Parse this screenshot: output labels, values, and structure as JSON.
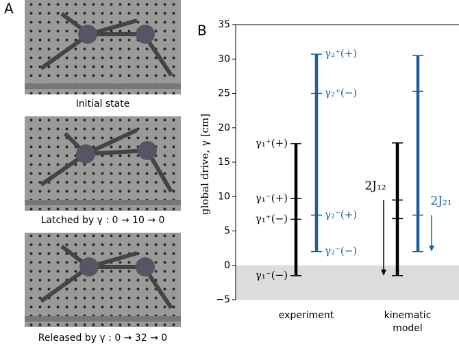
{
  "panel_a": {
    "label": "A",
    "captions": [
      "Initial state",
      "Latched by γ : 0 → 10 → 0",
      "Released by γ : 0 → 32 → 0"
    ]
  },
  "chart_data": {
    "type": "range",
    "panel_label": "B",
    "y_label": "global drive, γ [cm]",
    "categories": [
      "experiment",
      "kinematic model"
    ],
    "ylim": [
      -5,
      35
    ],
    "yticks": [
      {
        "value": -5,
        "label": "−5"
      },
      0,
      5,
      10,
      15,
      20,
      25,
      30,
      35
    ],
    "shade_below": 0,
    "series": [
      {
        "color": "#000000",
        "values": [
          [
            17.7,
            9.7,
            6.7,
            -1.5
          ],
          [
            17.8,
            9.5,
            6.8,
            -1.5
          ]
        ],
        "labels": [
          "γ₁⁺(+)",
          "γ₁⁻(+)",
          "γ₁⁺(−)",
          "γ₁⁻(−)"
        ]
      },
      {
        "color": "#1f5f9e",
        "values": [
          [
            30.7,
            25.0,
            7.3,
            2.0
          ],
          [
            30.5,
            25.3,
            7.3,
            2.0
          ]
        ],
        "labels": [
          "γ₂⁺(+)",
          "γ₂⁺(−)",
          "γ₂⁻(+)",
          "γ₂⁻(−)"
        ]
      }
    ],
    "annotations": [
      {
        "text": "2J₁₂",
        "color": "#000000",
        "values": [
          9.5,
          -1.5
        ]
      },
      {
        "text": "2J₂₁",
        "color": "#1f5f9e",
        "values": [
          7.3,
          2.0
        ]
      }
    ]
  }
}
